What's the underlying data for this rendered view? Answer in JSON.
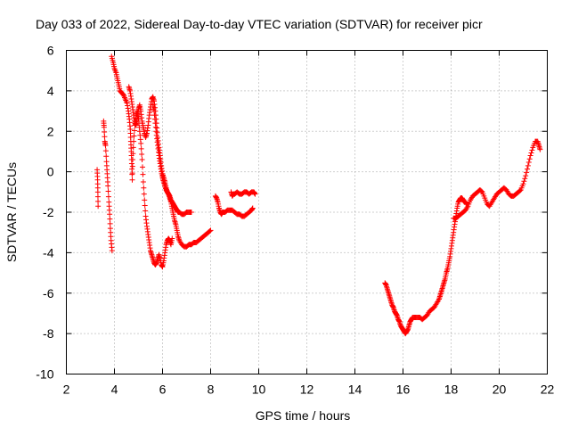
{
  "chart_data": {
    "type": "scatter",
    "title": "Day 033 of 2022, Sidereal Day-to-day VTEC variation (SDTVAR) for receiver picr",
    "xlabel": "GPS time / hours",
    "ylabel": "SDTVAR / TECUs",
    "xlim": [
      2,
      22
    ],
    "ylim": [
      -10,
      6
    ],
    "xticks": [
      2,
      4,
      6,
      8,
      10,
      12,
      14,
      16,
      18,
      20,
      22
    ],
    "yticks": [
      -10,
      -8,
      -6,
      -4,
      -2,
      0,
      2,
      4,
      6
    ],
    "grid": true,
    "marker": "+",
    "color": "#ff0000",
    "series": [
      {
        "name": "SDTVAR",
        "segments": [
          [
            [
              3.28,
              0.1
            ],
            [
              3.3,
              -0.4
            ],
            [
              3.31,
              -1.0
            ],
            [
              3.32,
              -1.7
            ]
          ],
          [
            [
              3.55,
              2.5
            ],
            [
              3.57,
              2.2
            ],
            [
              3.6,
              1.5
            ],
            [
              3.63,
              1.3
            ],
            [
              3.67,
              0.5
            ],
            [
              3.7,
              -0.1
            ],
            [
              3.73,
              -0.7
            ],
            [
              3.77,
              -1.5
            ],
            [
              3.8,
              -2.1
            ],
            [
              3.83,
              -2.8
            ],
            [
              3.86,
              -3.4
            ],
            [
              3.9,
              -3.9
            ]
          ],
          [
            [
              3.88,
              5.7
            ],
            [
              3.95,
              5.4
            ],
            [
              4.0,
              5.1
            ],
            [
              4.07,
              4.9
            ],
            [
              4.12,
              4.6
            ],
            [
              4.18,
              4.3
            ],
            [
              4.23,
              4.0
            ],
            [
              4.3,
              3.9
            ],
            [
              4.38,
              3.8
            ],
            [
              4.45,
              3.6
            ],
            [
              4.52,
              3.4
            ],
            [
              4.58,
              3.0
            ],
            [
              4.62,
              2.6
            ],
            [
              4.66,
              2.1
            ],
            [
              4.68,
              1.5
            ],
            [
              4.7,
              1.0
            ],
            [
              4.72,
              0.4
            ],
            [
              4.74,
              -0.4
            ],
            [
              4.76,
              0.6
            ],
            [
              4.8,
              1.5
            ],
            [
              4.85,
              2.3
            ],
            [
              4.9,
              2.8
            ],
            [
              4.95,
              3.0
            ],
            [
              5.0,
              2.6
            ],
            [
              5.05,
              2.0
            ],
            [
              5.1,
              1.4
            ],
            [
              5.15,
              0.6
            ],
            [
              5.2,
              -0.5
            ],
            [
              5.25,
              -1.4
            ],
            [
              5.3,
              -2.2
            ],
            [
              5.35,
              -2.7
            ],
            [
              5.4,
              -3.1
            ],
            [
              5.45,
              -3.5
            ],
            [
              5.5,
              -3.9
            ],
            [
              5.55,
              -4.1
            ],
            [
              5.6,
              -4.3
            ],
            [
              5.65,
              -4.5
            ],
            [
              5.7,
              -4.6
            ],
            [
              5.75,
              -4.5
            ],
            [
              5.8,
              -4.3
            ],
            [
              5.85,
              -4.1
            ],
            [
              5.9,
              -4.3
            ],
            [
              5.95,
              -4.6
            ],
            [
              6.0,
              -4.7
            ],
            [
              6.05,
              -4.4
            ],
            [
              6.1,
              -4.0
            ],
            [
              6.15,
              -3.6
            ],
            [
              6.2,
              -3.4
            ],
            [
              6.25,
              -3.3
            ],
            [
              6.3,
              -3.4
            ],
            [
              6.35,
              -3.6
            ],
            [
              6.4,
              -3.3
            ]
          ],
          [
            [
              4.6,
              4.2
            ],
            [
              4.65,
              4.0
            ],
            [
              4.7,
              3.6
            ],
            [
              4.75,
              3.2
            ],
            [
              4.8,
              2.8
            ],
            [
              4.85,
              2.4
            ],
            [
              4.9,
              2.3
            ],
            [
              4.95,
              2.6
            ],
            [
              5.0,
              3.1
            ],
            [
              5.05,
              3.3
            ],
            [
              5.1,
              3.0
            ],
            [
              5.15,
              2.5
            ],
            [
              5.2,
              2.2
            ],
            [
              5.25,
              1.9
            ],
            [
              5.3,
              1.7
            ],
            [
              5.35,
              1.9
            ],
            [
              5.4,
              2.3
            ],
            [
              5.45,
              2.8
            ],
            [
              5.5,
              3.2
            ],
            [
              5.55,
              3.6
            ],
            [
              5.6,
              3.7
            ],
            [
              5.65,
              3.5
            ],
            [
              5.7,
              3.0
            ],
            [
              5.75,
              2.4
            ],
            [
              5.8,
              1.7
            ],
            [
              5.85,
              1.2
            ],
            [
              5.9,
              0.8
            ],
            [
              5.95,
              0.3
            ],
            [
              6.0,
              -0.1
            ],
            [
              6.05,
              -0.3
            ],
            [
              6.1,
              -0.5
            ],
            [
              6.15,
              -0.8
            ],
            [
              6.2,
              -1.0
            ],
            [
              6.25,
              -1.1
            ],
            [
              6.3,
              -1.3
            ],
            [
              6.35,
              -1.5
            ],
            [
              6.4,
              -1.8
            ],
            [
              6.45,
              -2.1
            ],
            [
              6.5,
              -2.4
            ],
            [
              6.55,
              -2.6
            ],
            [
              6.6,
              -2.9
            ],
            [
              6.65,
              -3.2
            ],
            [
              6.7,
              -3.4
            ],
            [
              6.8,
              -3.6
            ],
            [
              6.9,
              -3.7
            ],
            [
              7.0,
              -3.7
            ],
            [
              7.1,
              -3.6
            ],
            [
              7.2,
              -3.6
            ],
            [
              7.3,
              -3.5
            ],
            [
              7.4,
              -3.5
            ],
            [
              7.5,
              -3.4
            ],
            [
              7.6,
              -3.3
            ],
            [
              7.7,
              -3.2
            ],
            [
              7.8,
              -3.1
            ],
            [
              7.9,
              -3.0
            ],
            [
              8.0,
              -2.9
            ]
          ],
          [
            [
              5.6,
              3.3
            ],
            [
              5.65,
              3.0
            ],
            [
              5.7,
              2.4
            ],
            [
              5.75,
              1.8
            ],
            [
              5.8,
              1.3
            ],
            [
              5.85,
              0.8
            ],
            [
              5.9,
              0.4
            ],
            [
              5.95,
              0.0
            ],
            [
              6.0,
              -0.3
            ],
            [
              6.05,
              -0.5
            ],
            [
              6.1,
              -0.7
            ],
            [
              6.15,
              -0.9
            ],
            [
              6.2,
              -1.0
            ],
            [
              6.25,
              -1.1
            ],
            [
              6.3,
              -1.2
            ],
            [
              6.35,
              -1.4
            ],
            [
              6.4,
              -1.5
            ],
            [
              6.45,
              -1.6
            ],
            [
              6.5,
              -1.7
            ],
            [
              6.55,
              -1.8
            ],
            [
              6.6,
              -1.9
            ],
            [
              6.65,
              -2.0
            ],
            [
              6.7,
              -2.0
            ],
            [
              6.8,
              -2.1
            ],
            [
              6.9,
              -2.1
            ],
            [
              7.0,
              -2.0
            ],
            [
              7.1,
              -2.0
            ],
            [
              7.2,
              -2.0
            ]
          ],
          [
            [
              8.2,
              -1.2
            ],
            [
              8.25,
              -1.3
            ],
            [
              8.3,
              -1.5
            ],
            [
              8.35,
              -1.8
            ],
            [
              8.4,
              -2.0
            ],
            [
              8.45,
              -2.1
            ],
            [
              8.5,
              -2.0
            ],
            [
              8.6,
              -2.0
            ],
            [
              8.7,
              -1.9
            ],
            [
              8.8,
              -1.9
            ],
            [
              8.9,
              -1.9
            ],
            [
              9.0,
              -2.0
            ],
            [
              9.1,
              -2.1
            ],
            [
              9.2,
              -2.1
            ],
            [
              9.3,
              -2.2
            ],
            [
              9.4,
              -2.2
            ],
            [
              9.5,
              -2.1
            ],
            [
              9.6,
              -2.0
            ],
            [
              9.7,
              -1.9
            ],
            [
              9.75,
              -1.8
            ]
          ],
          [
            [
              8.85,
              -1.0
            ],
            [
              8.9,
              -1.2
            ],
            [
              8.95,
              -1.1
            ],
            [
              9.0,
              -1.1
            ],
            [
              9.1,
              -1.0
            ],
            [
              9.2,
              -1.1
            ],
            [
              9.3,
              -1.1
            ],
            [
              9.4,
              -1.0
            ],
            [
              9.5,
              -1.0
            ],
            [
              9.6,
              -1.1
            ],
            [
              9.7,
              -1.0
            ],
            [
              9.8,
              -1.0
            ],
            [
              9.85,
              -1.1
            ]
          ],
          [
            [
              15.25,
              -5.5
            ],
            [
              15.3,
              -5.6
            ],
            [
              15.35,
              -5.8
            ],
            [
              15.4,
              -6.0
            ],
            [
              15.45,
              -6.2
            ],
            [
              15.5,
              -6.4
            ],
            [
              15.55,
              -6.6
            ],
            [
              15.6,
              -6.7
            ],
            [
              15.65,
              -6.9
            ],
            [
              15.7,
              -7.0
            ],
            [
              15.75,
              -7.1
            ],
            [
              15.8,
              -7.3
            ],
            [
              15.85,
              -7.4
            ],
            [
              15.9,
              -7.6
            ],
            [
              15.95,
              -7.7
            ],
            [
              16.0,
              -7.8
            ],
            [
              16.05,
              -7.9
            ],
            [
              16.1,
              -8.0
            ],
            [
              16.15,
              -7.9
            ],
            [
              16.2,
              -7.8
            ],
            [
              16.25,
              -7.6
            ],
            [
              16.3,
              -7.4
            ],
            [
              16.35,
              -7.3
            ],
            [
              16.4,
              -7.2
            ],
            [
              16.5,
              -7.2
            ],
            [
              16.6,
              -7.2
            ],
            [
              16.7,
              -7.2
            ],
            [
              16.8,
              -7.3
            ],
            [
              16.9,
              -7.2
            ],
            [
              17.0,
              -7.1
            ],
            [
              17.1,
              -6.9
            ],
            [
              17.2,
              -6.8
            ],
            [
              17.3,
              -6.7
            ],
            [
              17.4,
              -6.5
            ],
            [
              17.5,
              -6.3
            ],
            [
              17.55,
              -6.1
            ],
            [
              17.6,
              -5.9
            ],
            [
              17.65,
              -5.7
            ],
            [
              17.7,
              -5.5
            ],
            [
              17.75,
              -5.3
            ],
            [
              17.8,
              -5.0
            ],
            [
              17.85,
              -4.8
            ],
            [
              17.9,
              -4.5
            ],
            [
              17.95,
              -4.2
            ],
            [
              18.0,
              -3.8
            ],
            [
              18.05,
              -3.4
            ],
            [
              18.1,
              -3.0
            ],
            [
              18.15,
              -2.6
            ],
            [
              18.2,
              -2.2
            ],
            [
              18.25,
              -1.8
            ],
            [
              18.3,
              -1.5
            ],
            [
              18.35,
              -1.4
            ],
            [
              18.4,
              -1.3
            ],
            [
              18.45,
              -1.3
            ],
            [
              18.5,
              -1.4
            ],
            [
              18.55,
              -1.5
            ],
            [
              18.6,
              -1.5
            ],
            [
              18.65,
              -1.6
            ],
            [
              18.7,
              -1.6
            ]
          ],
          [
            [
              18.1,
              -2.3
            ],
            [
              18.2,
              -2.3
            ],
            [
              18.3,
              -2.2
            ],
            [
              18.4,
              -2.1
            ],
            [
              18.5,
              -2.0
            ],
            [
              18.6,
              -1.9
            ],
            [
              18.7,
              -1.7
            ],
            [
              18.8,
              -1.4
            ],
            [
              18.9,
              -1.2
            ],
            [
              19.0,
              -1.1
            ],
            [
              19.1,
              -1.0
            ],
            [
              19.2,
              -0.9
            ],
            [
              19.3,
              -1.0
            ],
            [
              19.4,
              -1.3
            ],
            [
              19.5,
              -1.6
            ],
            [
              19.6,
              -1.7
            ],
            [
              19.7,
              -1.5
            ],
            [
              19.8,
              -1.3
            ],
            [
              19.9,
              -1.1
            ],
            [
              20.0,
              -1.0
            ],
            [
              20.1,
              -0.9
            ],
            [
              20.2,
              -0.8
            ],
            [
              20.3,
              -0.9
            ],
            [
              20.4,
              -1.1
            ],
            [
              20.5,
              -1.2
            ],
            [
              20.6,
              -1.2
            ],
            [
              20.7,
              -1.1
            ],
            [
              20.8,
              -1.0
            ],
            [
              20.9,
              -0.9
            ],
            [
              21.0,
              -0.6
            ],
            [
              21.1,
              -0.2
            ],
            [
              21.2,
              0.3
            ],
            [
              21.3,
              0.8
            ],
            [
              21.4,
              1.2
            ],
            [
              21.5,
              1.5
            ],
            [
              21.6,
              1.5
            ],
            [
              21.65,
              1.3
            ],
            [
              21.7,
              1.1
            ]
          ]
        ]
      }
    ]
  }
}
